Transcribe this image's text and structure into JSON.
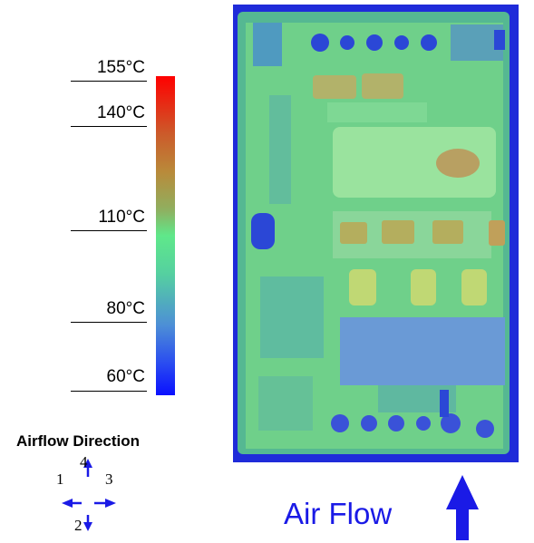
{
  "scale": {
    "labels": [
      "155°C",
      "140°C",
      "110°C",
      "80°C",
      "60°C"
    ],
    "colors": {
      "max": "#ff0000",
      "mid": "#5fe88a",
      "min": "#0a10ff"
    }
  },
  "airflow_legend": {
    "title": "Airflow Direction",
    "directions": [
      "4",
      "1",
      "3",
      "2"
    ],
    "arrow_color": "#1a1ae6"
  },
  "air_flow_label": "Air Flow",
  "board": {
    "background": "#1f2bd9",
    "pcb_color": "#6fd08a"
  }
}
